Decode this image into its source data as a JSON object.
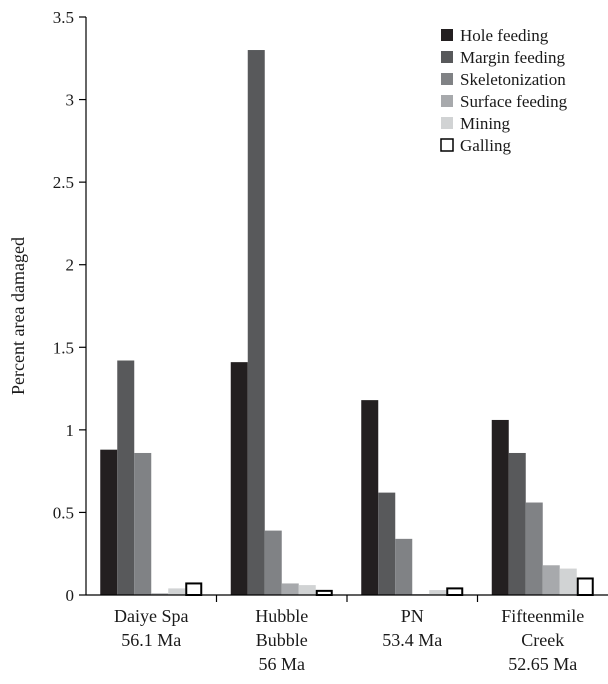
{
  "chart_data": {
    "type": "bar",
    "title": "",
    "xlabel": "",
    "ylabel": "Percent area damaged",
    "ylim": [
      0,
      3.5
    ],
    "yticks": [
      0,
      0.5,
      1,
      1.5,
      2,
      2.5,
      3,
      3.5
    ],
    "ytick_labels": [
      "0",
      "0.5",
      "1",
      "1.5",
      "2",
      "2.5",
      "3",
      "3.5"
    ],
    "grid": false,
    "legend_position": "top-right",
    "categories": [
      [
        "Daiye Spa",
        "56.1 Ma"
      ],
      [
        "Hubble",
        "Bubble",
        "56 Ma"
      ],
      [
        "PN",
        "53.4 Ma"
      ],
      [
        "Fifteenmile",
        "Creek",
        "52.65 Ma"
      ]
    ],
    "series": [
      {
        "name": "Hole feeding",
        "color": "#231f20",
        "values": [
          0.88,
          1.41,
          1.18,
          1.06
        ]
      },
      {
        "name": "Margin feeding",
        "color": "#58595b",
        "values": [
          1.42,
          3.3,
          0.62,
          0.86
        ]
      },
      {
        "name": "Skeletonization",
        "color": "#808285",
        "values": [
          0.86,
          0.39,
          0.34,
          0.56
        ]
      },
      {
        "name": "Surface feeding",
        "color": "#a7a9ac",
        "values": [
          0.01,
          0.07,
          0.005,
          0.18
        ]
      },
      {
        "name": "Mining",
        "color": "#d1d3d4",
        "values": [
          0.04,
          0.06,
          0.03,
          0.16
        ]
      },
      {
        "name": "Galling",
        "color": "#ffffff",
        "stroke": "#000000",
        "values": [
          0.07,
          0.025,
          0.04,
          0.1
        ]
      }
    ]
  }
}
